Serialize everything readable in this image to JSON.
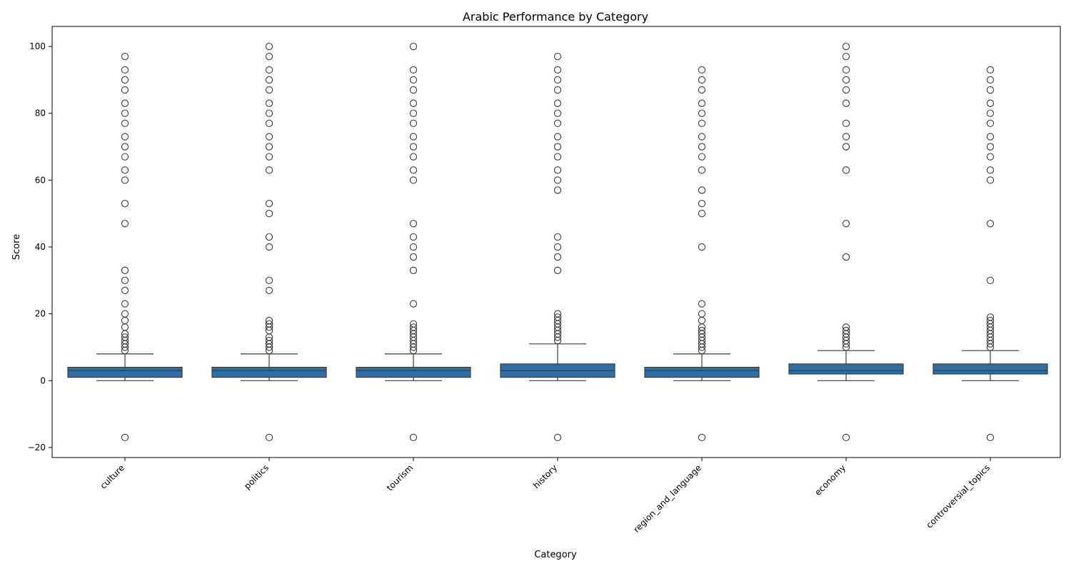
{
  "chart_data": {
    "type": "box",
    "title": "Arabic Performance by Category",
    "xlabel": "Category",
    "ylabel": "Score",
    "ylim": [
      -23,
      106
    ],
    "yticks": [
      -20,
      0,
      20,
      40,
      60,
      80,
      100
    ],
    "categories": [
      "culture",
      "politics",
      "tourism",
      "history",
      "region_and_language",
      "economy",
      "controversial_topics"
    ],
    "box_color": "#2f6fa8",
    "edge_color": "#3a3a3a",
    "boxes": [
      {
        "q1": 1,
        "median": 3,
        "q3": 4,
        "whisker_low": 0,
        "whisker_high": 8,
        "outliers": [
          -17,
          9,
          10,
          11,
          12,
          13,
          14,
          16,
          18,
          20,
          23,
          27,
          30,
          33,
          47,
          53,
          60,
          63,
          67,
          70,
          73,
          77,
          80,
          83,
          87,
          90,
          93,
          97
        ]
      },
      {
        "q1": 1,
        "median": 3,
        "q3": 4,
        "whisker_low": 0,
        "whisker_high": 8,
        "outliers": [
          -17,
          9,
          10,
          11,
          12,
          13,
          15,
          16,
          17,
          18,
          27,
          30,
          40,
          43,
          50,
          53,
          63,
          67,
          70,
          73,
          77,
          80,
          83,
          87,
          90,
          93,
          97,
          100
        ]
      },
      {
        "q1": 1,
        "median": 3,
        "q3": 4,
        "whisker_low": 0,
        "whisker_high": 8,
        "outliers": [
          -17,
          9,
          10,
          11,
          12,
          13,
          14,
          15,
          16,
          17,
          23,
          33,
          37,
          40,
          43,
          47,
          60,
          63,
          67,
          70,
          73,
          77,
          80,
          83,
          87,
          90,
          93,
          100
        ]
      },
      {
        "q1": 1,
        "median": 3,
        "q3": 5,
        "whisker_low": 0,
        "whisker_high": 11,
        "outliers": [
          -17,
          12,
          13,
          14,
          15,
          16,
          17,
          18,
          19,
          20,
          33,
          37,
          40,
          43,
          57,
          60,
          63,
          67,
          70,
          73,
          77,
          80,
          83,
          87,
          90,
          93,
          97
        ]
      },
      {
        "q1": 1,
        "median": 3,
        "q3": 4,
        "whisker_low": 0,
        "whisker_high": 8,
        "outliers": [
          -17,
          9,
          10,
          11,
          12,
          13,
          14,
          15,
          16,
          18,
          20,
          23,
          40,
          50,
          53,
          57,
          63,
          67,
          70,
          73,
          77,
          80,
          83,
          87,
          90,
          93
        ]
      },
      {
        "q1": 2,
        "median": 3,
        "q3": 5,
        "whisker_low": 0,
        "whisker_high": 9,
        "outliers": [
          -17,
          10,
          11,
          12,
          13,
          14,
          15,
          16,
          37,
          47,
          63,
          70,
          73,
          77,
          83,
          87,
          90,
          93,
          97,
          100
        ]
      },
      {
        "q1": 2,
        "median": 3,
        "q3": 5,
        "whisker_low": 0,
        "whisker_high": 9,
        "outliers": [
          -17,
          10,
          11,
          12,
          13,
          14,
          15,
          16,
          17,
          18,
          19,
          30,
          47,
          60,
          63,
          67,
          70,
          73,
          77,
          80,
          83,
          87,
          90,
          93
        ]
      }
    ]
  }
}
